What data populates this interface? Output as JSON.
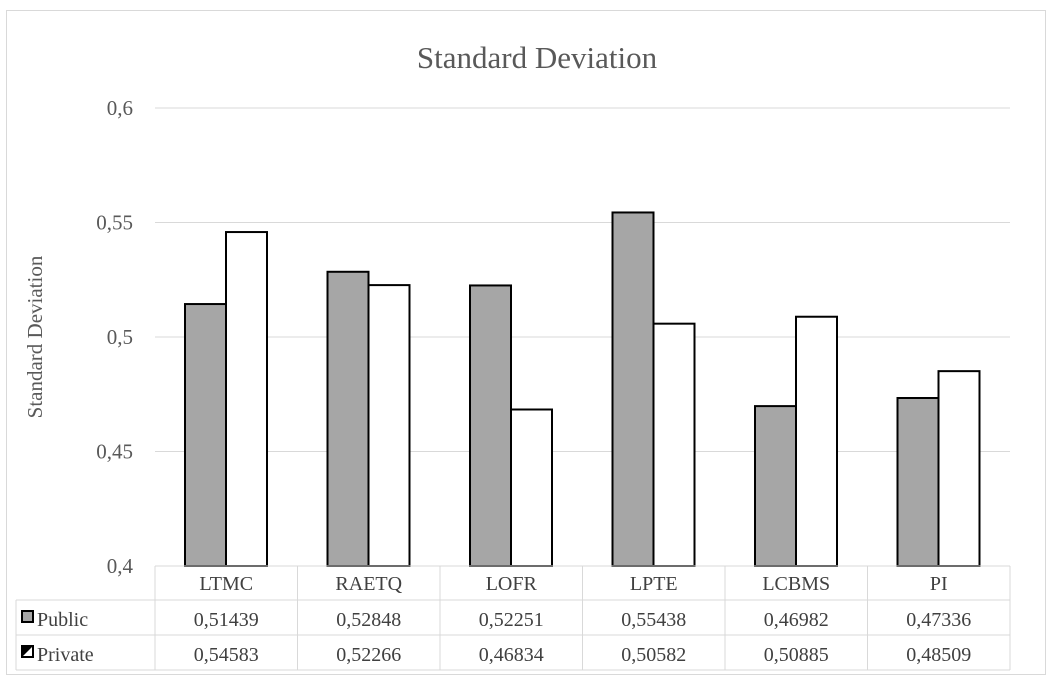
{
  "chart_data": {
    "type": "bar",
    "title": "Standard Deviation",
    "ylabel": "Standard Deviation",
    "xlabel": "",
    "ylim": [
      0.4,
      0.6
    ],
    "yticks": [
      0.4,
      0.45,
      0.5,
      0.55,
      0.6
    ],
    "ytick_labels": [
      "0,4",
      "0,45",
      "0,5",
      "0,55",
      "0,6"
    ],
    "categories": [
      "LTMC",
      "RAETQ",
      "LOFR",
      "LPTE",
      "LCBMS",
      "PI"
    ],
    "grid": true,
    "legend_placement": "data-table",
    "series": [
      {
        "name": "Public",
        "color": "#a6a6a6",
        "values": [
          0.51439,
          0.52848,
          0.52251,
          0.55438,
          0.46982,
          0.47336
        ],
        "value_labels": [
          "0,51439",
          "0,52848",
          "0,52251",
          "0,55438",
          "0,46982",
          "0,47336"
        ]
      },
      {
        "name": "Private",
        "color": "#ffffff",
        "values": [
          0.54583,
          0.52266,
          0.46834,
          0.50582,
          0.50885,
          0.48509
        ],
        "value_labels": [
          "0,54583",
          "0,52266",
          "0,46834",
          "0,50582",
          "0,50885",
          "0,48509"
        ]
      }
    ]
  }
}
